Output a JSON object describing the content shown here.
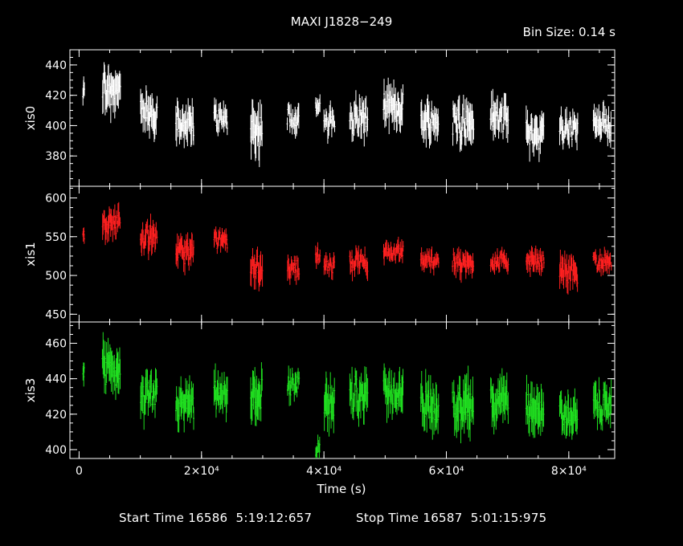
{
  "chart_data": {
    "type": "scatter",
    "title": "MAXI J1828−249",
    "bin_size_label": "Bin Size: 0.14 s",
    "xlabel": "Time (s)",
    "x_ticks": [
      0,
      20000,
      40000,
      60000,
      80000
    ],
    "x_tick_labels": [
      "0",
      "2×10⁴",
      "4×10⁴",
      "6×10⁴",
      "8×10⁴"
    ],
    "xlim": [
      -1500,
      87500
    ],
    "panels": [
      {
        "name": "xis0",
        "ylabel": "xis0",
        "color": "#ffffff",
        "ylim": [
          360,
          450
        ],
        "y_ticks": [
          380,
          400,
          420,
          440
        ],
        "y_tick_labels": [
          "380",
          "400",
          "420",
          "440"
        ],
        "segments": [
          {
            "t0": 600,
            "t1": 900,
            "level": 421,
            "spread": 5
          },
          {
            "t0": 3800,
            "t1": 6800,
            "level": 425,
            "spread": 10
          },
          {
            "t0": 10000,
            "t1": 12800,
            "level": 408,
            "spread": 8
          },
          {
            "t0": 15800,
            "t1": 18800,
            "level": 402,
            "spread": 8
          },
          {
            "t0": 22000,
            "t1": 24300,
            "level": 405,
            "spread": 6
          },
          {
            "t0": 28000,
            "t1": 30000,
            "level": 398,
            "spread": 10
          },
          {
            "t0": 34000,
            "t1": 36000,
            "level": 405,
            "spread": 6
          },
          {
            "t0": 38600,
            "t1": 39400,
            "level": 412,
            "spread": 4
          },
          {
            "t0": 40000,
            "t1": 41800,
            "level": 402,
            "spread": 6
          },
          {
            "t0": 44200,
            "t1": 47200,
            "level": 405,
            "spread": 8
          },
          {
            "t0": 49700,
            "t1": 53000,
            "level": 412,
            "spread": 8
          },
          {
            "t0": 55800,
            "t1": 58800,
            "level": 403,
            "spread": 8
          },
          {
            "t0": 61000,
            "t1": 64500,
            "level": 402,
            "spread": 9
          },
          {
            "t0": 67200,
            "t1": 70200,
            "level": 405,
            "spread": 8
          },
          {
            "t0": 73000,
            "t1": 76000,
            "level": 395,
            "spread": 8
          },
          {
            "t0": 78500,
            "t1": 81500,
            "level": 398,
            "spread": 7
          },
          {
            "t0": 84000,
            "t1": 87000,
            "level": 400,
            "spread": 7
          }
        ]
      },
      {
        "name": "xis1",
        "ylabel": "xis1",
        "color": "#ff2020",
        "ylim": [
          440,
          615
        ],
        "y_ticks": [
          450,
          500,
          550,
          600
        ],
        "y_tick_labels": [
          "450",
          "500",
          "550",
          "600"
        ],
        "segments": [
          {
            "t0": 600,
            "t1": 900,
            "level": 552,
            "spread": 6
          },
          {
            "t0": 3800,
            "t1": 6800,
            "level": 568,
            "spread": 12
          },
          {
            "t0": 10000,
            "t1": 12800,
            "level": 550,
            "spread": 12
          },
          {
            "t0": 15800,
            "t1": 18800,
            "level": 530,
            "spread": 12
          },
          {
            "t0": 22000,
            "t1": 24300,
            "level": 545,
            "spread": 8
          },
          {
            "t0": 28000,
            "t1": 30000,
            "level": 510,
            "spread": 14
          },
          {
            "t0": 34000,
            "t1": 36000,
            "level": 510,
            "spread": 10
          },
          {
            "t0": 38600,
            "t1": 39400,
            "level": 525,
            "spread": 8
          },
          {
            "t0": 40000,
            "t1": 41800,
            "level": 512,
            "spread": 8
          },
          {
            "t0": 44200,
            "t1": 47200,
            "level": 518,
            "spread": 10
          },
          {
            "t0": 49700,
            "t1": 53000,
            "level": 530,
            "spread": 8
          },
          {
            "t0": 55800,
            "t1": 58800,
            "level": 520,
            "spread": 8
          },
          {
            "t0": 61000,
            "t1": 64500,
            "level": 515,
            "spread": 10
          },
          {
            "t0": 67200,
            "t1": 70200,
            "level": 518,
            "spread": 8
          },
          {
            "t0": 73000,
            "t1": 76000,
            "level": 518,
            "spread": 9
          },
          {
            "t0": 78500,
            "t1": 81500,
            "level": 505,
            "spread": 12
          },
          {
            "t0": 84000,
            "t1": 87000,
            "level": 518,
            "spread": 8
          }
        ]
      },
      {
        "name": "xis3",
        "ylabel": "xis3",
        "color": "#20e020",
        "ylim": [
          395,
          472
        ],
        "y_ticks": [
          400,
          420,
          440,
          460
        ],
        "y_tick_labels": [
          "400",
          "420",
          "440",
          "460"
        ],
        "segments": [
          {
            "t0": 600,
            "t1": 900,
            "level": 442,
            "spread": 4
          },
          {
            "t0": 3800,
            "t1": 6800,
            "level": 445,
            "spread": 8
          },
          {
            "t0": 10000,
            "t1": 12800,
            "level": 430,
            "spread": 7
          },
          {
            "t0": 15800,
            "t1": 18800,
            "level": 425,
            "spread": 8
          },
          {
            "t0": 22000,
            "t1": 24300,
            "level": 430,
            "spread": 7
          },
          {
            "t0": 28000,
            "t1": 30000,
            "level": 430,
            "spread": 9
          },
          {
            "t0": 34000,
            "t1": 36000,
            "level": 435,
            "spread": 5
          },
          {
            "t0": 38600,
            "t1": 39400,
            "level": 400,
            "spread": 4
          },
          {
            "t0": 40000,
            "t1": 41800,
            "level": 425,
            "spread": 8
          },
          {
            "t0": 44200,
            "t1": 47200,
            "level": 432,
            "spread": 8
          },
          {
            "t0": 49700,
            "t1": 53000,
            "level": 432,
            "spread": 7
          },
          {
            "t0": 55800,
            "t1": 58800,
            "level": 425,
            "spread": 9
          },
          {
            "t0": 61000,
            "t1": 64500,
            "level": 425,
            "spread": 9
          },
          {
            "t0": 67200,
            "t1": 70200,
            "level": 428,
            "spread": 8
          },
          {
            "t0": 73000,
            "t1": 76000,
            "level": 422,
            "spread": 8
          },
          {
            "t0": 78500,
            "t1": 81500,
            "level": 420,
            "spread": 7
          },
          {
            "t0": 84000,
            "t1": 87000,
            "level": 425,
            "spread": 7
          }
        ]
      }
    ]
  },
  "footer": {
    "start_label": "Start Time 16586  5:19:12:657",
    "stop_label": "Stop Time 16587  5:01:15:975"
  }
}
